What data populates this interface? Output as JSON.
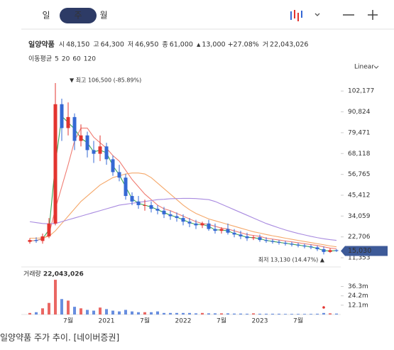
{
  "toolbar": {
    "tabs": [
      "일",
      "주",
      "월"
    ],
    "selected_tab": 1
  },
  "quote": {
    "name": "일양약품",
    "items": [
      {
        "label": "시",
        "value": "48,150"
      },
      {
        "label": "고",
        "value": "64,300"
      },
      {
        "label": "저",
        "value": "46,950"
      },
      {
        "label": "종",
        "value": "61,000"
      }
    ],
    "change": {
      "arrow": "▲",
      "amount": "13,000",
      "percent": "+27.08%"
    },
    "volume": {
      "label": "거",
      "value": "22,043,026"
    }
  },
  "chart_data": {
    "type": "candlestick",
    "ma_label": "이동평균",
    "scale_label": "Linear",
    "categories": [
      null,
      null,
      null,
      null,
      null,
      null,
      "7월",
      null,
      null,
      null,
      null,
      null,
      "2021",
      null,
      null,
      null,
      null,
      null,
      "7월",
      null,
      null,
      null,
      null,
      null,
      "2022",
      null,
      null,
      null,
      null,
      null,
      "7월",
      null,
      null,
      null,
      null,
      null,
      "2023",
      null,
      null,
      null,
      null,
      null,
      "7월",
      null,
      null,
      null,
      null,
      null,
      null
    ],
    "open": [
      20000,
      21000,
      20500,
      23000,
      30000,
      95000,
      82000,
      88000,
      75000,
      78000,
      70000,
      68000,
      72000,
      65000,
      58000,
      55000,
      45000,
      42000,
      40000,
      40000,
      38000,
      37000,
      35000,
      34000,
      33000,
      31000,
      30000,
      29000,
      30000,
      27000,
      26000,
      27000,
      25000,
      24000,
      23000,
      22000,
      22500,
      21000,
      20500,
      20000,
      19500,
      19000,
      18500,
      18000,
      17500,
      17000,
      16000,
      14500,
      15500
    ],
    "high": [
      22000,
      22500,
      24500,
      33000,
      106500,
      98000,
      96000,
      90000,
      84000,
      80000,
      75000,
      78000,
      74000,
      67000,
      62000,
      57000,
      47000,
      45000,
      43000,
      42000,
      40000,
      39000,
      37000,
      36000,
      35000,
      33000,
      32000,
      31000,
      32000,
      30000,
      28000,
      30000,
      27000,
      26000,
      25000,
      23500,
      24000,
      22500,
      21500,
      21000,
      20500,
      20000,
      19500,
      19000,
      18500,
      18000,
      17500,
      16500,
      16000
    ],
    "low": [
      19000,
      19500,
      19000,
      22000,
      29000,
      75000,
      78000,
      70000,
      72000,
      66000,
      63000,
      64000,
      62000,
      56000,
      53000,
      43000,
      40000,
      38000,
      37000,
      36000,
      35000,
      33000,
      32000,
      31000,
      29000,
      28000,
      27000,
      27500,
      26000,
      24500,
      24500,
      24000,
      22500,
      21500,
      20500,
      21000,
      20000,
      19500,
      19000,
      18500,
      18000,
      17500,
      17000,
      16500,
      16000,
      15000,
      13130,
      14000,
      14500
    ],
    "close": [
      21000,
      20500,
      23000,
      30000,
      95000,
      82000,
      88000,
      75000,
      78000,
      70000,
      68000,
      72000,
      65000,
      58000,
      55000,
      45000,
      42000,
      40000,
      40000,
      38000,
      37000,
      35000,
      34000,
      33000,
      31000,
      30000,
      29000,
      30000,
      27000,
      26000,
      27000,
      25000,
      24000,
      23000,
      22000,
      22500,
      21000,
      20500,
      20000,
      19500,
      19000,
      18500,
      18000,
      17500,
      17000,
      16000,
      14500,
      15500,
      15030
    ],
    "up_color": "#e3342f",
    "down_color": "#3568d4",
    "series": [
      {
        "name": "5",
        "color": "#3aa655",
        "values": [
          20500,
          20750,
          21750,
          26500,
          62500,
          88500,
          85000,
          81500,
          76500,
          74000,
          69000,
          70000,
          68500,
          61500,
          56500,
          50000,
          43500,
          41000,
          40000,
          39000,
          37500,
          36000,
          34500,
          33500,
          32000,
          30500,
          29500,
          29500,
          28500,
          26500,
          26500,
          26000,
          24500,
          23500,
          22500,
          22250,
          21750,
          20750,
          20250,
          19750,
          19250,
          18750,
          18250,
          17750,
          17250,
          16500,
          15250,
          15000,
          15265
        ]
      },
      {
        "name": "20",
        "color": "#f07c72",
        "values": [
          20500,
          20800,
          21500,
          24000,
          38000,
          50000,
          62000,
          75000,
          82000,
          82000,
          77000,
          74000,
          71000,
          67000,
          64000,
          59000,
          54000,
          50000,
          46000,
          43000,
          40000,
          38000,
          37000,
          35500,
          34000,
          32500,
          31000,
          30000,
          29500,
          28500,
          27500,
          27000,
          26000,
          25000,
          24000,
          23500,
          23000,
          22000,
          21500,
          21000,
          20500,
          20000,
          19500,
          19000,
          18500,
          18000,
          17300,
          16600,
          16200
        ]
      },
      {
        "name": "60",
        "color": "#f5a86a",
        "values": [
          22000,
          22000,
          22200,
          23000,
          26000,
          30000,
          34000,
          38000,
          42000,
          45000,
          48000,
          51000,
          53000,
          55000,
          56000,
          57000,
          57500,
          57500,
          57000,
          55000,
          52000,
          49000,
          46000,
          43000,
          40000,
          37500,
          35500,
          34000,
          32500,
          31500,
          30500,
          29500,
          28500,
          27500,
          26500,
          25500,
          24800,
          24000,
          23300,
          22700,
          22000,
          21400,
          20800,
          20200,
          19600,
          19000,
          18400,
          17800,
          17300
        ]
      },
      {
        "name": "120",
        "color": "#a98be0",
        "values": [
          31000,
          30500,
          30000,
          29800,
          30000,
          31000,
          32000,
          33000,
          34000,
          35000,
          36000,
          37000,
          38000,
          39000,
          40000,
          40500,
          41000,
          41500,
          42000,
          42500,
          43000,
          43200,
          43500,
          43600,
          43700,
          43700,
          43600,
          43300,
          43000,
          42000,
          40500,
          39000,
          37500,
          36000,
          34500,
          33000,
          31500,
          30000,
          28800,
          27600,
          26500,
          25500,
          24600,
          23800,
          23000,
          22300,
          21700,
          21200,
          20800
        ]
      }
    ],
    "ylim": [
      8000,
      110000
    ],
    "yticks": [
      {
        "value": 11353,
        "label": "11,353"
      },
      {
        "value": 22706,
        "label": "22,706"
      },
      {
        "value": 34059,
        "label": "34,059"
      },
      {
        "value": 45412,
        "label": "45,412"
      },
      {
        "value": 56765,
        "label": "56,765"
      },
      {
        "value": 68118,
        "label": "68,118"
      },
      {
        "value": 79471,
        "label": "79,471"
      },
      {
        "value": 90824,
        "label": "90,824"
      },
      {
        "value": 102177,
        "label": "102,177"
      }
    ],
    "grid": false,
    "max_label": "▼ 최고 106,500 (-85.89%)",
    "min_label": "최저 13,130 (14.47%) ▲",
    "last_label": "15,030",
    "volume": {
      "title": "거래량",
      "total": "22,043,026",
      "values": [
        2,
        3,
        8,
        15,
        45,
        20,
        18,
        10,
        8,
        6,
        5,
        9,
        7,
        5,
        4,
        6,
        4,
        3,
        3,
        3,
        4,
        2,
        2,
        2,
        2,
        2,
        1.5,
        2,
        1.5,
        1.5,
        1.5,
        1.5,
        1.2,
        1.2,
        1,
        1.5,
        1,
        1,
        1,
        1,
        0.8,
        0.8,
        0.8,
        0.8,
        0.8,
        1,
        2,
        1.5,
        1.2
      ],
      "ylim": [
        0,
        46
      ],
      "yticks": [
        {
          "value": 12.1,
          "label": "12.1m"
        },
        {
          "value": 24.2,
          "label": "24.2m"
        },
        {
          "value": 36.3,
          "label": "36.3m"
        }
      ]
    }
  },
  "caption": "일양약품 주가 추이. [네이버증권]"
}
